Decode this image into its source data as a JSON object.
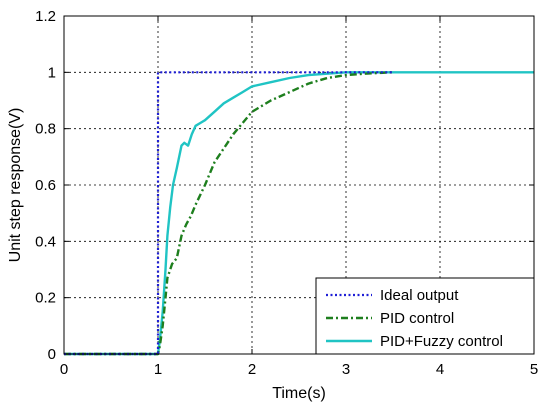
{
  "chart_data": {
    "type": "line",
    "xlabel": "Time(s)",
    "ylabel": "Unit step response(V)",
    "xlim": [
      0,
      5
    ],
    "ylim": [
      0,
      1.2
    ],
    "xticks": [
      0,
      1,
      2,
      3,
      4,
      5
    ],
    "xtick_labels": [
      "0",
      "1",
      "2",
      "3",
      "4",
      "5"
    ],
    "yticks": [
      0,
      0.2,
      0.4,
      0.6,
      0.8,
      1,
      1.2
    ],
    "ytick_labels": [
      "0",
      "0.2",
      "0.4",
      "0.6",
      "0.8",
      "1",
      "1.2"
    ],
    "grid": true,
    "legend_position": "bottom-right",
    "series": [
      {
        "name": "Ideal output",
        "color": "#1f1fd6",
        "style": "dotted",
        "x": [
          0,
          1.0,
          1.0,
          3.5
        ],
        "y": [
          0,
          0,
          1.0,
          1.0
        ]
      },
      {
        "name": "PID control",
        "color": "#1e7f1e",
        "style": "dashdot",
        "x": [
          0,
          1.0,
          1.02,
          1.05,
          1.08,
          1.1,
          1.15,
          1.2,
          1.25,
          1.3,
          1.35,
          1.4,
          1.5,
          1.6,
          1.7,
          1.8,
          1.9,
          2.0,
          2.2,
          2.4,
          2.6,
          2.8,
          3.0,
          3.2,
          3.5
        ],
        "y": [
          0,
          0,
          0.03,
          0.1,
          0.2,
          0.27,
          0.32,
          0.34,
          0.42,
          0.46,
          0.49,
          0.53,
          0.6,
          0.68,
          0.73,
          0.78,
          0.82,
          0.86,
          0.9,
          0.93,
          0.96,
          0.98,
          0.99,
          0.995,
          1.0
        ]
      },
      {
        "name": "PID+Fuzzy control",
        "color": "#20c4c4",
        "style": "solid",
        "x": [
          0,
          1.0,
          1.02,
          1.05,
          1.08,
          1.1,
          1.13,
          1.16,
          1.2,
          1.25,
          1.28,
          1.32,
          1.36,
          1.4,
          1.45,
          1.5,
          1.6,
          1.7,
          1.8,
          1.9,
          2.0,
          2.2,
          2.4,
          2.6,
          2.8,
          3.0,
          3.2,
          3.5,
          4.0,
          5.0
        ],
        "y": [
          0,
          0,
          0.05,
          0.15,
          0.3,
          0.42,
          0.52,
          0.6,
          0.66,
          0.74,
          0.75,
          0.74,
          0.78,
          0.81,
          0.82,
          0.83,
          0.86,
          0.89,
          0.91,
          0.93,
          0.95,
          0.965,
          0.98,
          0.99,
          0.995,
          1.0,
          1.0,
          1.0,
          1.0,
          1.0
        ]
      }
    ]
  }
}
